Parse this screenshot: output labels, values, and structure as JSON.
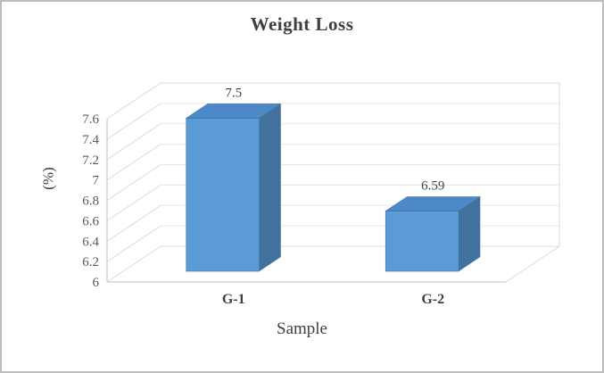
{
  "chart_data": {
    "type": "bar",
    "style": "3d-column",
    "title": "Weight Loss",
    "categories": [
      "G-1",
      "G-2"
    ],
    "values": [
      7.5,
      6.59
    ],
    "data_labels": [
      "7.5",
      "6.59"
    ],
    "xlabel": "Sample",
    "ylabel": "(%)",
    "ylim": [
      6,
      7.6
    ],
    "ytick_step": 0.2,
    "ytick_labels": [
      "6",
      "6.2",
      "6.4",
      "6.6",
      "6.8",
      "7",
      "7.2",
      "7.4",
      "7.6"
    ],
    "grid": true,
    "legend": "none",
    "colors": {
      "bar_front": "#5B9BD5",
      "bar_side": "#41719C",
      "bar_top": "#4D89C8",
      "gridline": "#D9D9D9",
      "backwall_gridline": "#E7E7E7",
      "axis_line": "#BFBFBF",
      "axis_text": "#595959",
      "title_text": "#3F3F3F"
    }
  }
}
